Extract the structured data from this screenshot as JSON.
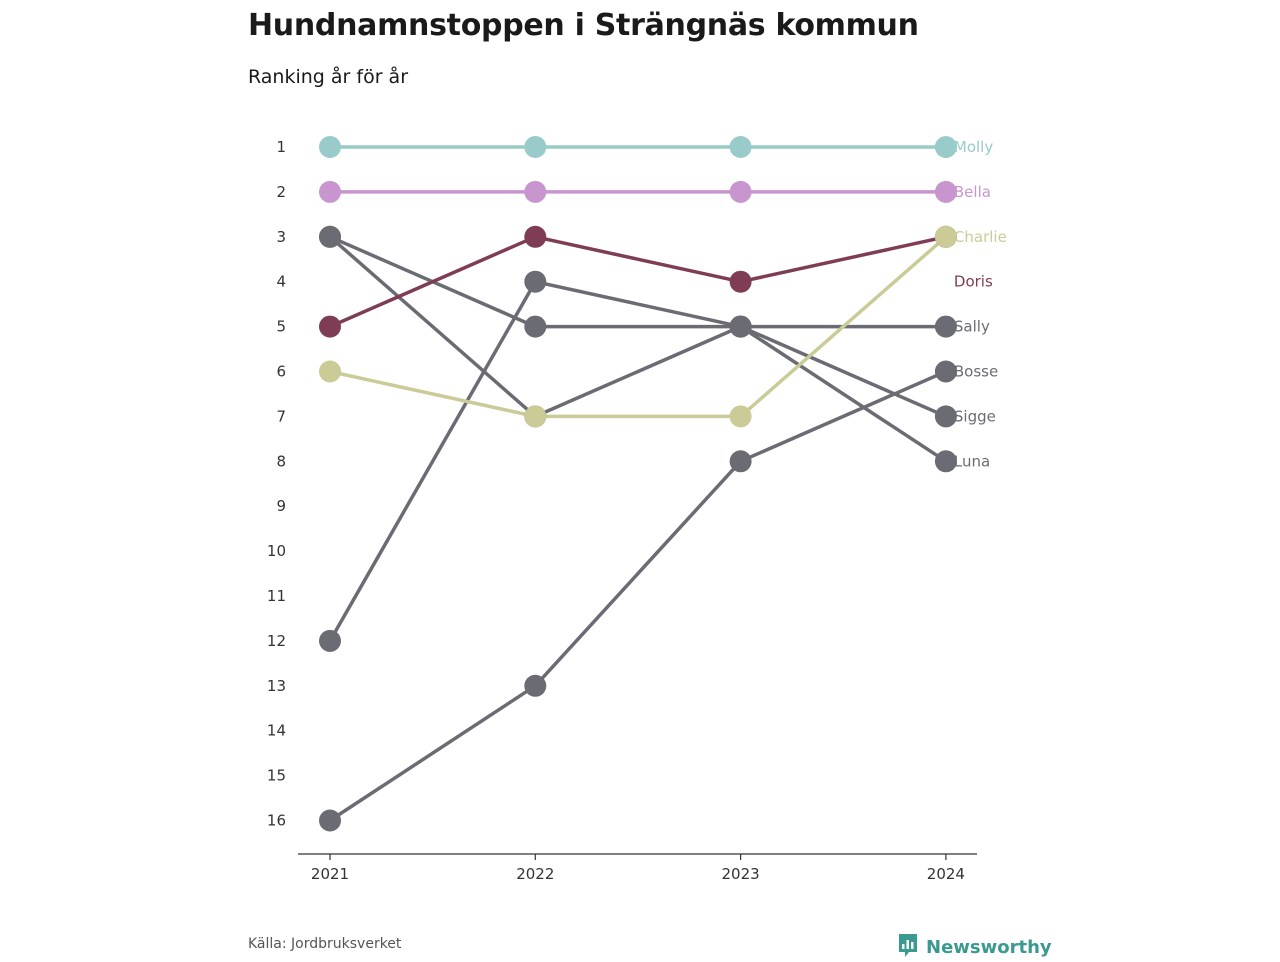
{
  "title": "Hundnamnstoppen i Strängnäs kommun",
  "subtitle": "Ranking år för år",
  "source": "Källa: Jordbruksverket",
  "brand": {
    "name": "Newsworthy",
    "icon": "newsworthy-logo-icon",
    "color": "#3a9a8f"
  },
  "chart_data": {
    "type": "line",
    "x": [
      "2021",
      "2022",
      "2023",
      "2024"
    ],
    "y_ticks": [
      1,
      2,
      3,
      4,
      5,
      6,
      7,
      8,
      9,
      10,
      11,
      12,
      13,
      14,
      15,
      16
    ],
    "y_reversed": true,
    "ylim": [
      1,
      16
    ],
    "grid": false,
    "series": [
      {
        "name": "Luna",
        "values": [
          3,
          7,
          5,
          8
        ],
        "color": "#6b6b73"
      },
      {
        "name": "Sigge",
        "values": [
          3,
          5,
          5,
          7
        ],
        "color": "#6b6b73"
      },
      {
        "name": "Bosse",
        "values": [
          16,
          13,
          8,
          6
        ],
        "color": "#6b6b73"
      },
      {
        "name": "Sally",
        "values": [
          12,
          4,
          5,
          5
        ],
        "color": "#6b6b73"
      },
      {
        "name": "Doris",
        "values": [
          5,
          3,
          4,
          3
        ],
        "color": "#7e3d55",
        "label_y": 4
      },
      {
        "name": "Charlie",
        "values": [
          6,
          7,
          7,
          3
        ],
        "color": "#cbcb98"
      },
      {
        "name": "Bella",
        "values": [
          2,
          2,
          2,
          2
        ],
        "color": "#c895cf"
      },
      {
        "name": "Molly",
        "values": [
          1,
          1,
          1,
          1
        ],
        "color": "#98cbc9"
      }
    ]
  }
}
